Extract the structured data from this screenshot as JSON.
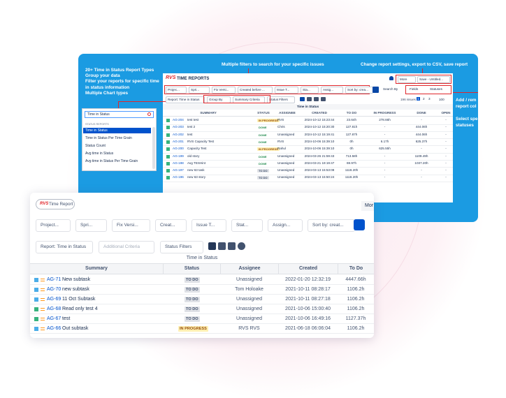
{
  "back_panel": {
    "features": [
      "20+ Time in Status Report Types",
      "Group your data",
      "Filter your reports for specific time",
      "in status information",
      "Multiple Chart types"
    ],
    "callout_filters": "Multiple filters to search for your specific issues",
    "callout_settings": "Change report settings, export to CSV, save report",
    "callout_columns": [
      "Add / rem",
      "report col"
    ],
    "callout_statuses": [
      "Select spe",
      "statuses"
    ],
    "app": {
      "logo": "RVS",
      "title": "Time Reports",
      "buttons": [
        "More",
        "Save - Untitled..."
      ],
      "filters": [
        "Projec...",
        "Spri...",
        "Fix Versi...",
        "Created before ...",
        "Issue T...",
        "Sta...",
        "Assig...",
        "Sort by: crea..."
      ],
      "right_buttons": [
        "Search By",
        "Fields",
        "Statuses"
      ],
      "subfilters": [
        "Report: Time in Status",
        "Group By",
        "Summary Criteria",
        "Status Filters"
      ],
      "issues": "196 issues",
      "pages": [
        "1",
        "2",
        "3"
      ],
      "page_size": "100",
      "table_title": "Time in Status",
      "columns": [
        "SUMMARY",
        "STATUS",
        "ASSIGNEE",
        "CREATED",
        "TO DO",
        "IN PROGRESS",
        "DONE",
        "OPEN"
      ],
      "rows": [
        [
          "AG-204",
          "test test",
          "IN PROGRESS",
          "RVS",
          "2024-10-12 15:23:44",
          "23.64h",
          "278.66h",
          "-",
          "-"
        ],
        [
          "AG-203",
          "test 2",
          "DONE",
          "Chris",
          "2024-10-12 15:20:30",
          "127.81h",
          "-",
          "444.06h",
          "-"
        ],
        [
          "AG-202",
          "test",
          "DONE",
          "Unassigned",
          "2024-10-12 15:19:41",
          "127.87h",
          "-",
          "444.06h",
          "-"
        ],
        [
          "AG-201",
          "RVS Capacity Test",
          "DONE",
          "RVS",
          "2024-10-06 15:39:10",
          "0h",
          "6.17h",
          "625.37h",
          "-"
        ],
        [
          "AG-200",
          "Capacity Test",
          "IN PROGRESS",
          "Rahul",
          "2024-10-06 15:39:10",
          "0h",
          "625.55h",
          "-",
          "-"
        ],
        [
          "AG-199",
          "old story",
          "DONE",
          "Unassigned",
          "2024-03-26 21:59:43",
          "713.58h",
          "-",
          "1109.49h",
          "-"
        ],
        [
          "AG-198",
          "Avg TESHint",
          "DONE",
          "Unassigned",
          "2024-03-21 19:19:47",
          "69.97h",
          "-",
          "1037.20h",
          "-"
        ],
        [
          "AG-197",
          "new 63 task",
          "TO DO",
          "Unassigned",
          "2024-03-13 15:53:08",
          "1118.20h",
          "-",
          "-",
          "-"
        ],
        [
          "AG-196",
          "new 63 story",
          "TO DO",
          "Unassigned",
          "2024-03-13 15:50:24",
          "1118.20h",
          "-",
          "-",
          "-"
        ]
      ]
    },
    "dropdown": {
      "search": "Time in Status",
      "header": "STATUS REPORTS",
      "items": [
        "Time in Status",
        "Time in Status Per Time Grain",
        "Status Count",
        "Avg time in Status",
        "Avg time in Status Per Time Grain"
      ]
    }
  },
  "front_card": {
    "logo": "RVS",
    "title": "Time Report",
    "more": "Mor",
    "filters": [
      "Project...",
      "Spri...",
      "Fix Versi...",
      "Creat...",
      "Issue T...",
      "Stat...",
      "Assign...",
      "Sort by: creat..."
    ],
    "report": "Report: Time in Status",
    "additional": "Additional Criteria",
    "status_filters": "Status Filters",
    "table_title": "Time in Status",
    "columns": [
      "Summary",
      "Status",
      "Assignee",
      "Created",
      "To Do"
    ],
    "rows": [
      [
        "AG-71",
        "New subtask",
        "TO DO",
        "Unassigned",
        "2022-01-20 12:32:19",
        "4447.66h"
      ],
      [
        "AG-70",
        "new subtask",
        "TO DO",
        "Tom Holoake",
        "2021-10-11 08:28:17",
        "1106.2h"
      ],
      [
        "AG-69",
        "11 Oct Subtask",
        "TO DO",
        "Unassigned",
        "2021-10-11 08:27:18",
        "1106.2h"
      ],
      [
        "AG-68",
        "Read only test 4",
        "TO DO",
        "Unassigned",
        "2021-10-06 15:00:40",
        "1106.2h"
      ],
      [
        "AG-67",
        "test",
        "TO DO",
        "Unassigned",
        "2021-10-06 16:49:16",
        "1127.37h"
      ],
      [
        "AG-66",
        "Out subtask",
        "IN PROGRESS",
        "RVS RVS",
        "2021-06-18 06:06:04",
        "1106.2h"
      ]
    ]
  }
}
